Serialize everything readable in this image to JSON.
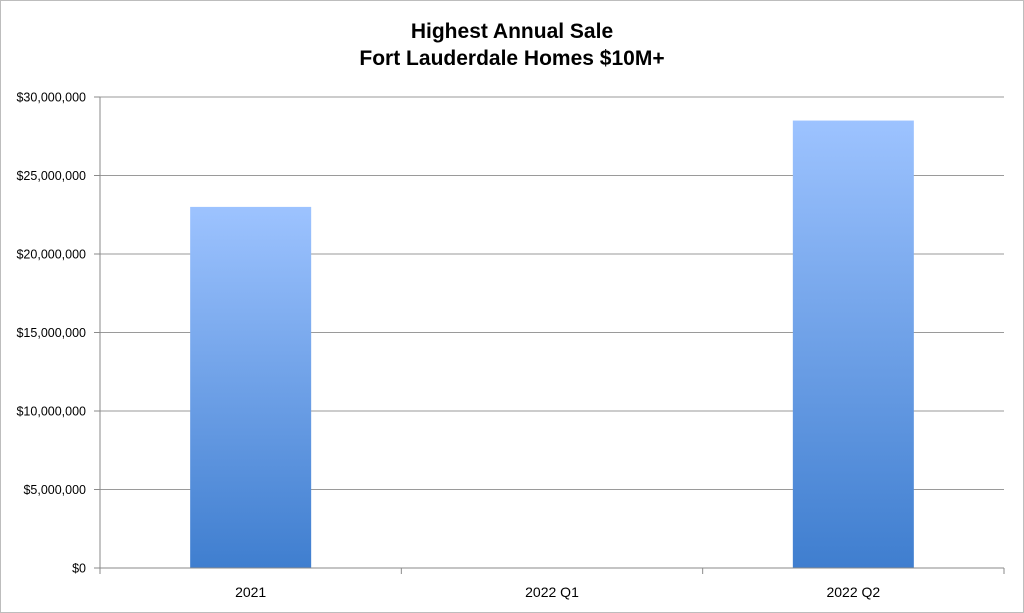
{
  "chart_data": {
    "type": "bar",
    "title": "Highest Annual Sale",
    "subtitle": "Fort Lauderdale Homes $10M+",
    "xlabel": "",
    "ylabel": "",
    "categories": [
      "2021",
      "2022 Q1",
      "2022 Q2"
    ],
    "values": [
      23000000,
      0,
      28500000
    ],
    "ylim": [
      0,
      30000000
    ],
    "y_ticks": [
      0,
      5000000,
      10000000,
      15000000,
      20000000,
      25000000,
      30000000
    ],
    "y_tick_labels": [
      "$0",
      "$5,000,000",
      "$10,000,000",
      "$15,000,000",
      "$20,000,000",
      "$25,000,000",
      "$30,000,000"
    ],
    "grid": true,
    "legend": "none",
    "colors": {
      "bar_top": "#9DC3FF",
      "bar_bottom": "#3F7ECF",
      "grid": "#9a9a9a",
      "axis": "#8a8a8a"
    }
  }
}
